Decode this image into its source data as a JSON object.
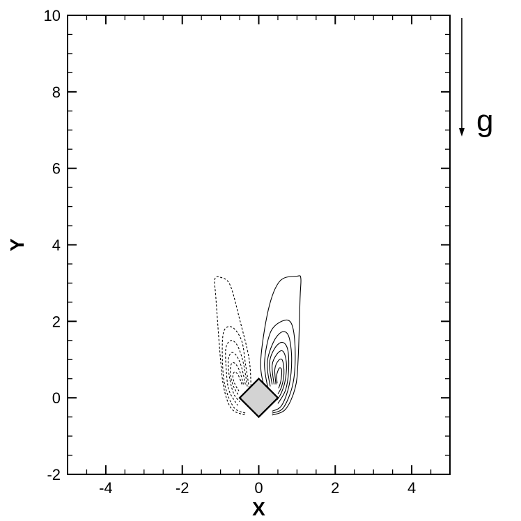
{
  "chart_data": {
    "type": "contour",
    "xlabel": "X",
    "ylabel": "Y",
    "xlim": [
      -5,
      5
    ],
    "ylim": [
      -2,
      10
    ],
    "x_ticks": [
      -4,
      -2,
      0,
      2,
      4
    ],
    "y_ticks": [
      -2,
      0,
      2,
      4,
      6,
      8,
      10
    ],
    "grid": false,
    "annotation": {
      "text": "g",
      "arrow": "downward"
    },
    "obstacle": {
      "shape": "diamond",
      "center": [
        0,
        0
      ],
      "half_diagonal": 0.5
    },
    "contours": [
      {
        "style": "solid",
        "points": [
          [
            0.2,
            0.1
          ],
          [
            0.05,
            0.9
          ],
          [
            0.25,
            2.3
          ],
          [
            0.55,
            3.05
          ],
          [
            1.0,
            3.18
          ],
          [
            1.1,
            3.12
          ],
          [
            1.08,
            2.6
          ],
          [
            1.03,
            1.0
          ],
          [
            0.95,
            0.25
          ],
          [
            0.7,
            -0.3
          ],
          [
            0.35,
            -0.45
          ]
        ]
      },
      {
        "style": "solid",
        "points": [
          [
            0.25,
            0.2
          ],
          [
            0.15,
            0.9
          ],
          [
            0.3,
            1.7
          ],
          [
            0.6,
            2.0
          ],
          [
            0.85,
            1.95
          ],
          [
            0.95,
            1.3
          ],
          [
            0.9,
            0.4
          ],
          [
            0.65,
            -0.25
          ],
          [
            0.35,
            -0.4
          ]
        ]
      },
      {
        "style": "solid",
        "points": [
          [
            0.3,
            0.3
          ],
          [
            0.22,
            0.9
          ],
          [
            0.38,
            1.45
          ],
          [
            0.6,
            1.72
          ],
          [
            0.78,
            1.62
          ],
          [
            0.86,
            1.05
          ],
          [
            0.8,
            0.35
          ],
          [
            0.6,
            -0.2
          ],
          [
            0.35,
            -0.35
          ]
        ]
      },
      {
        "style": "solid",
        "points": [
          [
            0.35,
            0.35
          ],
          [
            0.28,
            0.9
          ],
          [
            0.42,
            1.3
          ],
          [
            0.62,
            1.45
          ],
          [
            0.76,
            1.25
          ],
          [
            0.78,
            0.7
          ],
          [
            0.7,
            0.2
          ],
          [
            0.5,
            -0.15
          ]
        ]
      },
      {
        "style": "solid",
        "points": [
          [
            0.4,
            0.35
          ],
          [
            0.35,
            0.85
          ],
          [
            0.48,
            1.15
          ],
          [
            0.63,
            1.22
          ],
          [
            0.72,
            0.95
          ],
          [
            0.7,
            0.5
          ],
          [
            0.6,
            0.15
          ],
          [
            0.48,
            -0.05
          ]
        ]
      },
      {
        "style": "solid",
        "points": [
          [
            0.45,
            0.35
          ],
          [
            0.42,
            0.75
          ],
          [
            0.52,
            0.98
          ],
          [
            0.62,
            0.98
          ],
          [
            0.66,
            0.65
          ],
          [
            0.6,
            0.3
          ],
          [
            0.5,
            0.1
          ]
        ]
      },
      {
        "style": "solid",
        "points": [
          [
            0.48,
            0.38
          ],
          [
            0.47,
            0.6
          ],
          [
            0.54,
            0.78
          ],
          [
            0.6,
            0.72
          ],
          [
            0.58,
            0.45
          ],
          [
            0.52,
            0.25
          ]
        ]
      },
      {
        "style": "dashed",
        "points": [
          [
            -0.2,
            0.1
          ],
          [
            -0.25,
            1.0
          ],
          [
            -0.5,
            2.05
          ],
          [
            -0.75,
            2.95
          ],
          [
            -1.0,
            3.15
          ],
          [
            -1.15,
            3.1
          ],
          [
            -1.12,
            2.6
          ],
          [
            -1.0,
            1.0
          ],
          [
            -0.9,
            0.2
          ],
          [
            -0.7,
            -0.3
          ],
          [
            -0.35,
            -0.45
          ]
        ]
      },
      {
        "style": "dashed",
        "points": [
          [
            -0.25,
            0.25
          ],
          [
            -0.35,
            0.9
          ],
          [
            -0.45,
            1.5
          ],
          [
            -0.7,
            1.85
          ],
          [
            -0.92,
            1.72
          ],
          [
            -0.95,
            1.0
          ],
          [
            -0.88,
            0.3
          ],
          [
            -0.65,
            -0.25
          ],
          [
            -0.35,
            -0.4
          ]
        ]
      },
      {
        "style": "dashed",
        "points": [
          [
            -0.3,
            0.3
          ],
          [
            -0.4,
            0.9
          ],
          [
            -0.55,
            1.35
          ],
          [
            -0.72,
            1.5
          ],
          [
            -0.86,
            1.3
          ],
          [
            -0.85,
            0.75
          ],
          [
            -0.78,
            0.2
          ],
          [
            -0.55,
            -0.2
          ]
        ]
      },
      {
        "style": "dashed",
        "points": [
          [
            -0.35,
            0.35
          ],
          [
            -0.45,
            0.8
          ],
          [
            -0.58,
            1.1
          ],
          [
            -0.72,
            1.18
          ],
          [
            -0.8,
            0.95
          ],
          [
            -0.76,
            0.5
          ],
          [
            -0.65,
            0.1
          ],
          [
            -0.5,
            -0.1
          ]
        ]
      },
      {
        "style": "dashed",
        "points": [
          [
            -0.4,
            0.35
          ],
          [
            -0.5,
            0.7
          ],
          [
            -0.62,
            0.9
          ],
          [
            -0.72,
            0.88
          ],
          [
            -0.74,
            0.6
          ],
          [
            -0.66,
            0.3
          ],
          [
            -0.52,
            0.05
          ]
        ]
      },
      {
        "style": "dashed",
        "points": [
          [
            -0.44,
            0.35
          ],
          [
            -0.53,
            0.58
          ],
          [
            -0.63,
            0.68
          ],
          [
            -0.68,
            0.55
          ],
          [
            -0.62,
            0.35
          ],
          [
            -0.52,
            0.18
          ]
        ]
      }
    ]
  }
}
